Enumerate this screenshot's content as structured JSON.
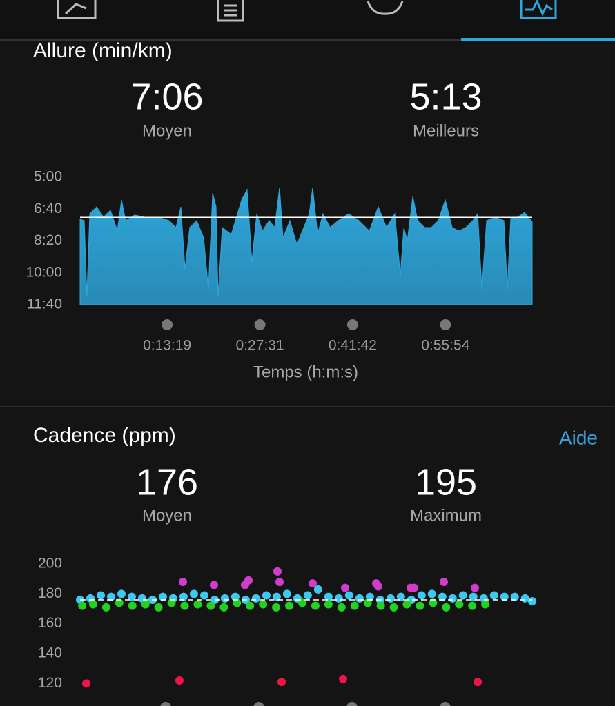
{
  "chart_data": [
    {
      "type": "area",
      "title": "Allure (min/km)",
      "stats": [
        {
          "value": "7:06",
          "label": "Moyen"
        },
        {
          "value": "5:13",
          "label": "Meilleurs"
        }
      ],
      "x_label": "Temps (h:m:s)",
      "x": [
        0,
        38,
        63,
        89,
        152,
        215,
        279,
        342,
        380,
        418,
        501,
        596,
        722,
        817,
        881,
        925,
        963,
        1007,
        1071,
        1134,
        1178,
        1217,
        1248,
        1267,
        1305,
        1388,
        1483,
        1533,
        1577,
        1622,
        1673,
        1736,
        1787,
        1831,
        1863,
        1926,
        1990,
        2053,
        2104,
        2135,
        2180,
        2230,
        2294,
        2370,
        2465,
        2560,
        2655,
        2737,
        2813,
        2889,
        2940,
        2972,
        3003,
        3054,
        3098,
        3162,
        3225,
        3288,
        3352,
        3415,
        3478,
        3542,
        3605,
        3650,
        3688,
        3732,
        3814,
        3890,
        3922,
        3954,
        4017,
        4080,
        4150
      ],
      "values": [
        7.2,
        7.27,
        11.23,
        6.91,
        6.55,
        7.09,
        6.73,
        7.81,
        6.19,
        7.27,
        6.98,
        7.09,
        7.09,
        7.27,
        7.63,
        6.55,
        9.79,
        7.63,
        7.27,
        8.17,
        10.87,
        5.83,
        6.55,
        11.23,
        7.63,
        7.99,
        6.19,
        5.65,
        9.43,
        6.91,
        7.81,
        7.27,
        7.63,
        5.54,
        8.17,
        7.27,
        8.53,
        7.63,
        6.91,
        5.54,
        7.99,
        6.91,
        7.63,
        7.27,
        6.91,
        7.27,
        7.81,
        6.55,
        7.63,
        6.91,
        10.15,
        7.63,
        8.35,
        6.01,
        7.27,
        7.63,
        7.63,
        7.27,
        6.19,
        7.63,
        7.81,
        7.63,
        7.27,
        6.91,
        10.87,
        7.27,
        7.09,
        7.27,
        10.87,
        7.09,
        7.09,
        6.84,
        7.34
      ],
      "color": "#2ea7dc",
      "average": 7.1,
      "xlim": [
        0,
        4150
      ],
      "xticks": [
        {
          "value": 799,
          "label": "0:13:19"
        },
        {
          "value": 1651,
          "label": "0:27:31"
        },
        {
          "value": 2502,
          "label": "0:41:42"
        },
        {
          "value": 3354,
          "label": "0:55:54"
        }
      ],
      "ylim": [
        11.6667,
        5
      ],
      "yticks": [
        {
          "value": 5,
          "label": "5:00"
        },
        {
          "value": 6.6667,
          "label": "6:40"
        },
        {
          "value": 8.3333,
          "label": "8:20"
        },
        {
          "value": 10,
          "label": "10:00"
        },
        {
          "value": 11.6667,
          "label": "11:40"
        }
      ]
    },
    {
      "type": "scatter",
      "title": "Cadence (ppm)",
      "link": "Aide",
      "stats": [
        {
          "value": "176",
          "label": "Moyen"
        },
        {
          "value": "195",
          "label": "Maximum"
        }
      ],
      "average": 176,
      "xlim": [
        0,
        4150
      ],
      "ylim": [
        110,
        200
      ],
      "yticks": [
        200,
        180,
        160,
        140,
        120
      ],
      "series": [
        {
          "color": "#3cc8f0",
          "x": [
            0,
            95,
            190,
            285,
            380,
            475,
            570,
            665,
            760,
            855,
            950,
            1045,
            1140,
            1235,
            1330,
            1425,
            1520,
            1615,
            1710,
            1805,
            1900,
            1995,
            2090,
            2185,
            2280,
            2375,
            2470,
            2565,
            2660,
            2755,
            2850,
            2945,
            3040,
            3135,
            3230,
            3325,
            3420,
            3515,
            3610,
            3705,
            3800,
            3895,
            3990,
            4085,
            4150
          ],
          "values": [
            176,
            177,
            179,
            178,
            180,
            178,
            177,
            176,
            178,
            177,
            178,
            180,
            179,
            176,
            177,
            178,
            176,
            177,
            179,
            178,
            180,
            177,
            179,
            183,
            178,
            177,
            179,
            177,
            178,
            176,
            177,
            178,
            176,
            179,
            180,
            178,
            177,
            179,
            178,
            177,
            179,
            178,
            178,
            177,
            175
          ]
        },
        {
          "color": "#22d21e",
          "x": [
            20,
            120,
            240,
            360,
            480,
            600,
            720,
            840,
            960,
            1080,
            1200,
            1320,
            1440,
            1560,
            1680,
            1800,
            1920,
            2040,
            2160,
            2280,
            2400,
            2520,
            2640,
            2760,
            2880,
            3000,
            3120,
            3240,
            3360,
            3480,
            3600,
            3720
          ],
          "values": [
            172,
            173,
            171,
            174,
            172,
            173,
            171,
            174,
            172,
            173,
            172,
            171,
            174,
            172,
            173,
            171,
            172,
            174,
            172,
            173,
            171,
            172,
            174,
            172,
            171,
            173,
            172,
            174,
            171,
            173,
            172,
            173
          ]
        },
        {
          "color": "#d23ccc",
          "x": [
            944,
            1229,
            1514,
            1546,
            1812,
            1831,
            2135,
            2433,
            2718,
            2737,
            3035,
            3066,
            3339,
            3624
          ],
          "values": [
            188,
            186,
            186,
            189,
            195,
            188,
            187,
            184,
            187,
            185,
            184,
            184,
            188,
            184
          ]
        },
        {
          "color": "#ee1446",
          "x": [
            57,
            912,
            1850,
            2414,
            3650
          ],
          "values": [
            120,
            122,
            121,
            123,
            121
          ]
        }
      ]
    }
  ]
}
